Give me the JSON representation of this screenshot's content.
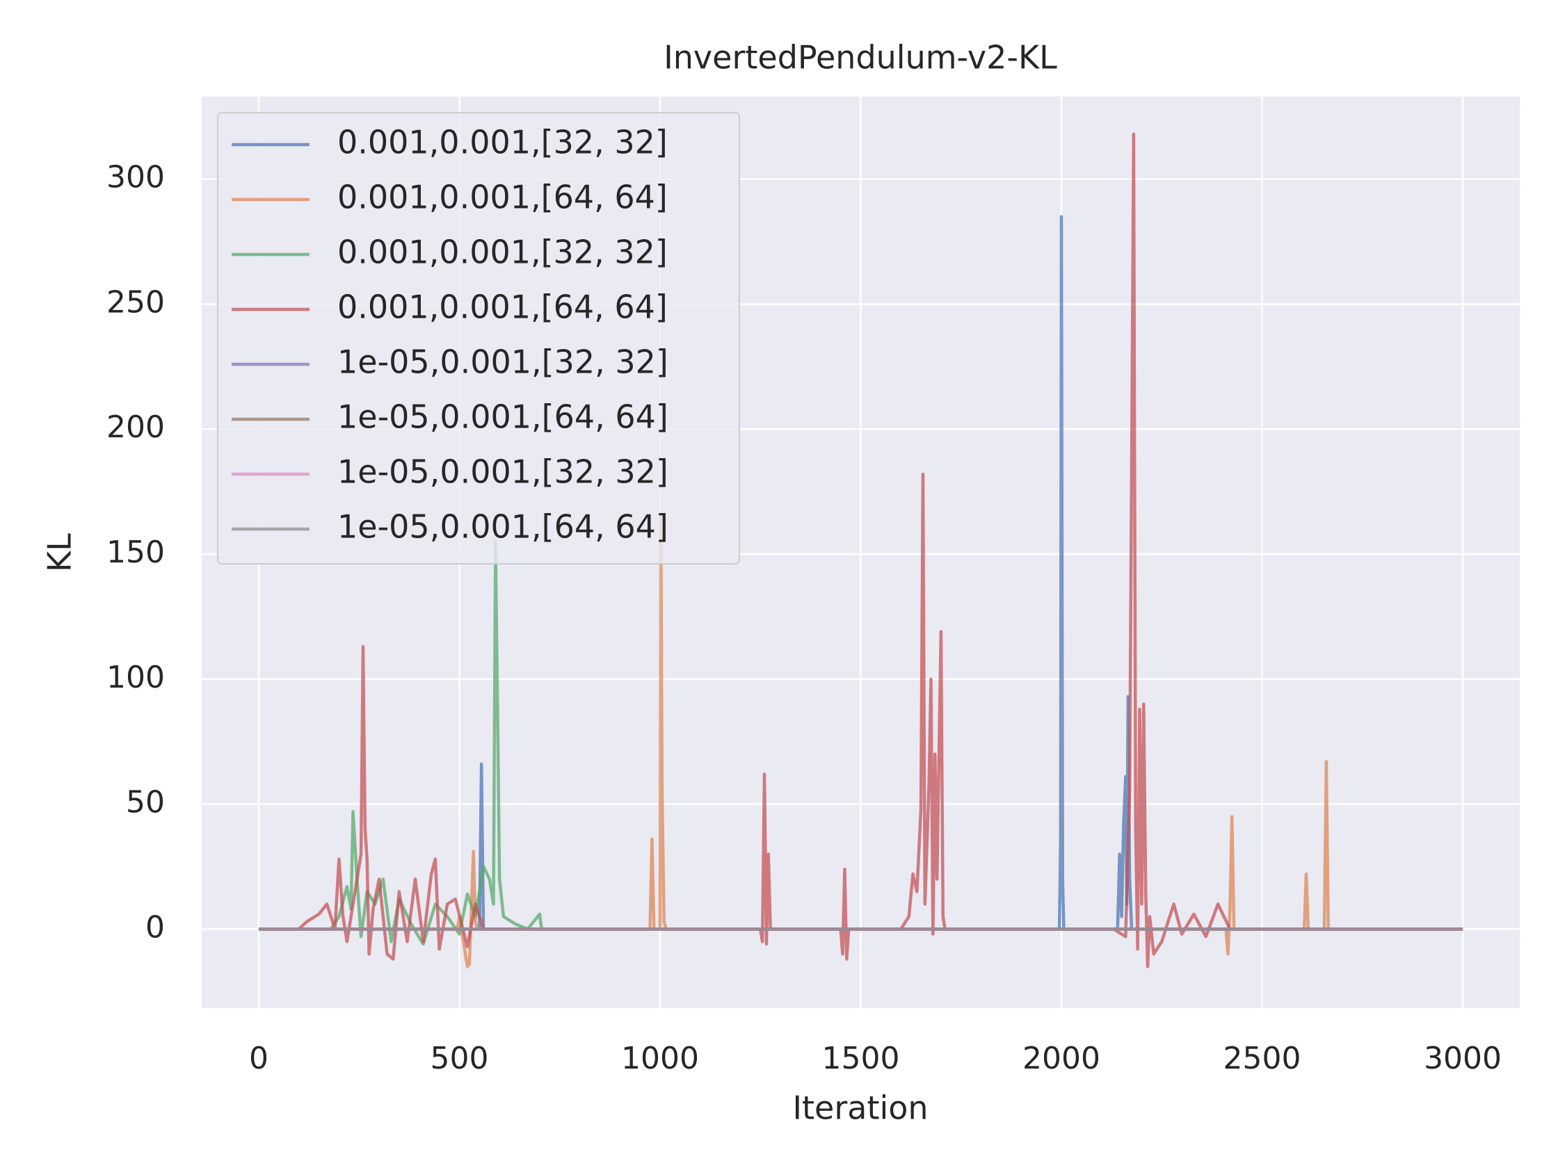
{
  "chart_data": {
    "type": "line",
    "title": "InvertedPendulum-v2-KL",
    "x_label": "Iteration",
    "y_label": "KL",
    "xlim": [
      -142,
      3142
    ],
    "ylim": [
      -31.6,
      333
    ],
    "xticks": [
      0,
      500,
      1000,
      1500,
      2000,
      2500,
      3000
    ],
    "yticks": [
      0,
      50,
      100,
      150,
      200,
      250,
      300
    ],
    "grid": true,
    "legend": "upper left",
    "background": "#eaeaf2",
    "series": [
      {
        "name": "0.001,0.001,[32, 32]",
        "color": "#4c72b0",
        "x": [
          0,
          550,
          555,
          560,
          1995,
          1998,
          2000,
          2003,
          2006,
          2140,
          2145,
          2150,
          2155,
          2160,
          2163,
          2166,
          2170,
          2175,
          3000
        ],
        "values": [
          0,
          0,
          66,
          0,
          0,
          35,
          285,
          20,
          0,
          0,
          30,
          5,
          42,
          61,
          10,
          93,
          20,
          0,
          0
        ]
      },
      {
        "name": "0.001,0.001,[64, 64]",
        "color": "#dd8452",
        "x": [
          0,
          495,
          500,
          510,
          520,
          525,
          535,
          540,
          545,
          975,
          980,
          985,
          1000,
          1002,
          1005,
          1010,
          1015,
          2410,
          2415,
          2420,
          2425,
          2430,
          2605,
          2610,
          2615,
          2655,
          2660,
          2665,
          3000
        ],
        "values": [
          0,
          0,
          5,
          -5,
          -15,
          -14,
          31,
          3,
          0,
          0,
          36,
          0,
          0,
          165,
          55,
          3,
          0,
          0,
          -10,
          8,
          45,
          0,
          0,
          22,
          0,
          0,
          67,
          0,
          0
        ]
      },
      {
        "name": "0.001,0.001,[32, 32]",
        "color": "#55a868",
        "x": [
          0,
          180,
          200,
          220,
          230,
          235,
          245,
          255,
          270,
          290,
          310,
          330,
          350,
          380,
          410,
          440,
          470,
          500,
          520,
          540,
          560,
          575,
          585,
          590,
          595,
          600,
          610,
          640,
          670,
          700,
          705,
          760,
          3000
        ],
        "values": [
          0,
          0,
          5,
          17,
          8,
          47,
          20,
          -3,
          15,
          10,
          20,
          -5,
          12,
          2,
          -6,
          10,
          5,
          -2,
          14,
          5,
          25,
          20,
          10,
          155,
          90,
          20,
          5,
          2,
          0,
          6,
          0,
          0,
          0
        ]
      },
      {
        "name": "0.001,0.001,[64, 64]",
        "color": "#c44e52",
        "x": [
          0,
          100,
          120,
          150,
          170,
          190,
          200,
          210,
          220,
          240,
          255,
          260,
          265,
          270,
          275,
          285,
          300,
          320,
          335,
          350,
          370,
          390,
          410,
          430,
          440,
          450,
          470,
          490,
          520,
          540,
          560,
          1250,
          1255,
          1260,
          1265,
          1270,
          1275,
          1450,
          1455,
          1460,
          1465,
          1470,
          1600,
          1620,
          1630,
          1640,
          1650,
          1655,
          1660,
          1670,
          1675,
          1680,
          1685,
          1690,
          1700,
          1705,
          1710,
          1720,
          2130,
          2160,
          2170,
          2180,
          2185,
          2190,
          2195,
          2200,
          2205,
          2210,
          2215,
          2220,
          2230,
          2250,
          2280,
          2300,
          2330,
          2360,
          2390,
          2420,
          3000
        ],
        "values": [
          0,
          0,
          3,
          6,
          10,
          0,
          28,
          5,
          -5,
          15,
          30,
          113,
          40,
          28,
          -10,
          8,
          20,
          -10,
          -12,
          15,
          -5,
          20,
          -5,
          22,
          28,
          -8,
          10,
          12,
          -7,
          10,
          0,
          0,
          -5,
          62,
          -6,
          30,
          0,
          0,
          -10,
          24,
          -12,
          0,
          0,
          5,
          22,
          15,
          48,
          182,
          10,
          58,
          100,
          -2,
          70,
          20,
          119,
          5,
          0,
          0,
          0,
          -3,
          55,
          318,
          40,
          -8,
          88,
          10,
          90,
          15,
          -15,
          5,
          -10,
          -5,
          10,
          -2,
          6,
          -3,
          10,
          0,
          0
        ]
      },
      {
        "name": "1e-05,0.001,[32, 32]",
        "color": "#8172b3",
        "x": [
          0,
          3000
        ],
        "values": [
          0,
          0
        ]
      },
      {
        "name": "1e-05,0.001,[64, 64]",
        "color": "#937860",
        "x": [
          0,
          3000
        ],
        "values": [
          0,
          0
        ]
      },
      {
        "name": "1e-05,0.001,[32, 32]",
        "color": "#da8bc3",
        "x": [
          0,
          3000
        ],
        "values": [
          0,
          0
        ]
      },
      {
        "name": "1e-05,0.001,[64, 64]",
        "color": "#8c8c8c",
        "x": [
          0,
          3000
        ],
        "values": [
          0,
          0
        ]
      }
    ]
  }
}
